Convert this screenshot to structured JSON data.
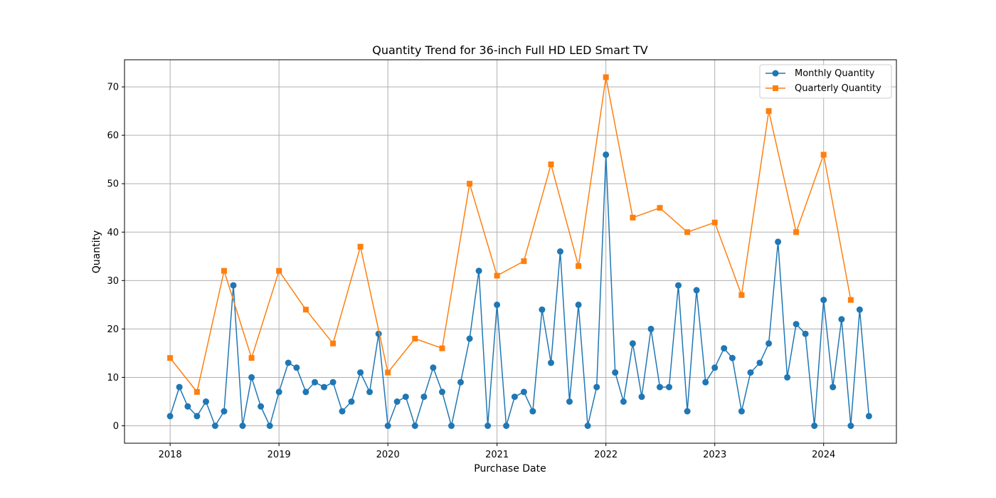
{
  "chart_data": {
    "type": "line",
    "title": "Quantity Trend for 36-inch Full HD LED Smart TV",
    "xlabel": "Purchase Date",
    "ylabel": "Quantity",
    "xlim": [
      "2017-08-01",
      "2024-09-01"
    ],
    "ylim": [
      -3.6,
      75.6
    ],
    "x_ticks": [
      "2018",
      "2019",
      "2020",
      "2021",
      "2022",
      "2023",
      "2024"
    ],
    "y_ticks": [
      0,
      10,
      20,
      30,
      40,
      50,
      60,
      70
    ],
    "grid": true,
    "legend_position": "top-right",
    "series": [
      {
        "name": "Monthly Quantity",
        "color": "#1f77b4",
        "marker": "circle",
        "x": [
          "2018-01-01",
          "2018-02-01",
          "2018-03-01",
          "2018-04-01",
          "2018-05-01",
          "2018-06-01",
          "2018-07-01",
          "2018-08-01",
          "2018-09-01",
          "2018-10-01",
          "2018-11-01",
          "2018-12-01",
          "2019-01-01",
          "2019-02-01",
          "2019-03-01",
          "2019-04-01",
          "2019-05-01",
          "2019-06-01",
          "2019-07-01",
          "2019-08-01",
          "2019-09-01",
          "2019-10-01",
          "2019-11-01",
          "2019-12-01",
          "2020-01-01",
          "2020-02-01",
          "2020-03-01",
          "2020-04-01",
          "2020-05-01",
          "2020-06-01",
          "2020-07-01",
          "2020-08-01",
          "2020-09-01",
          "2020-10-01",
          "2020-11-01",
          "2020-12-01",
          "2021-01-01",
          "2021-02-01",
          "2021-03-01",
          "2021-04-01",
          "2021-05-01",
          "2021-06-01",
          "2021-07-01",
          "2021-08-01",
          "2021-09-01",
          "2021-10-01",
          "2021-11-01",
          "2021-12-01",
          "2022-01-01",
          "2022-02-01",
          "2022-03-01",
          "2022-04-01",
          "2022-05-01",
          "2022-06-01",
          "2022-07-01",
          "2022-08-01",
          "2022-09-01",
          "2022-10-01",
          "2022-11-01",
          "2022-12-01",
          "2023-01-01",
          "2023-02-01",
          "2023-03-01",
          "2023-04-01",
          "2023-05-01",
          "2023-06-01",
          "2023-07-01",
          "2023-08-01",
          "2023-09-01",
          "2023-10-01",
          "2023-11-01",
          "2023-12-01",
          "2024-01-01",
          "2024-02-01",
          "2024-03-01",
          "2024-04-01",
          "2024-05-01",
          "2024-06-01"
        ],
        "values": [
          2,
          8,
          4,
          2,
          5,
          0,
          3,
          29,
          0,
          10,
          4,
          0,
          7,
          13,
          12,
          7,
          9,
          8,
          9,
          3,
          5,
          11,
          7,
          19,
          0,
          5,
          6,
          0,
          6,
          12,
          7,
          0,
          9,
          18,
          32,
          0,
          25,
          0,
          6,
          7,
          3,
          24,
          13,
          36,
          5,
          25,
          0,
          8,
          56,
          11,
          5,
          17,
          6,
          20,
          8,
          8,
          29,
          3,
          28,
          9,
          12,
          16,
          14,
          3,
          11,
          13,
          17,
          38,
          10,
          21,
          19,
          0,
          26,
          8,
          22,
          0,
          24,
          2
        ]
      },
      {
        "name": "Quarterly Quantity",
        "color": "#ff7f0e",
        "marker": "square",
        "x": [
          "2018-01-01",
          "2018-04-01",
          "2018-07-01",
          "2018-10-01",
          "2019-01-01",
          "2019-04-01",
          "2019-07-01",
          "2019-10-01",
          "2020-01-01",
          "2020-04-01",
          "2020-07-01",
          "2020-10-01",
          "2021-01-01",
          "2021-04-01",
          "2021-07-01",
          "2021-10-01",
          "2022-01-01",
          "2022-04-01",
          "2022-07-01",
          "2022-10-01",
          "2023-01-01",
          "2023-04-01",
          "2023-07-01",
          "2023-10-01",
          "2024-01-01",
          "2024-04-01"
        ],
        "values": [
          14,
          7,
          32,
          14,
          32,
          24,
          17,
          37,
          11,
          18,
          16,
          50,
          31,
          34,
          54,
          33,
          72,
          43,
          45,
          40,
          42,
          27,
          65,
          40,
          56,
          26
        ]
      }
    ]
  }
}
